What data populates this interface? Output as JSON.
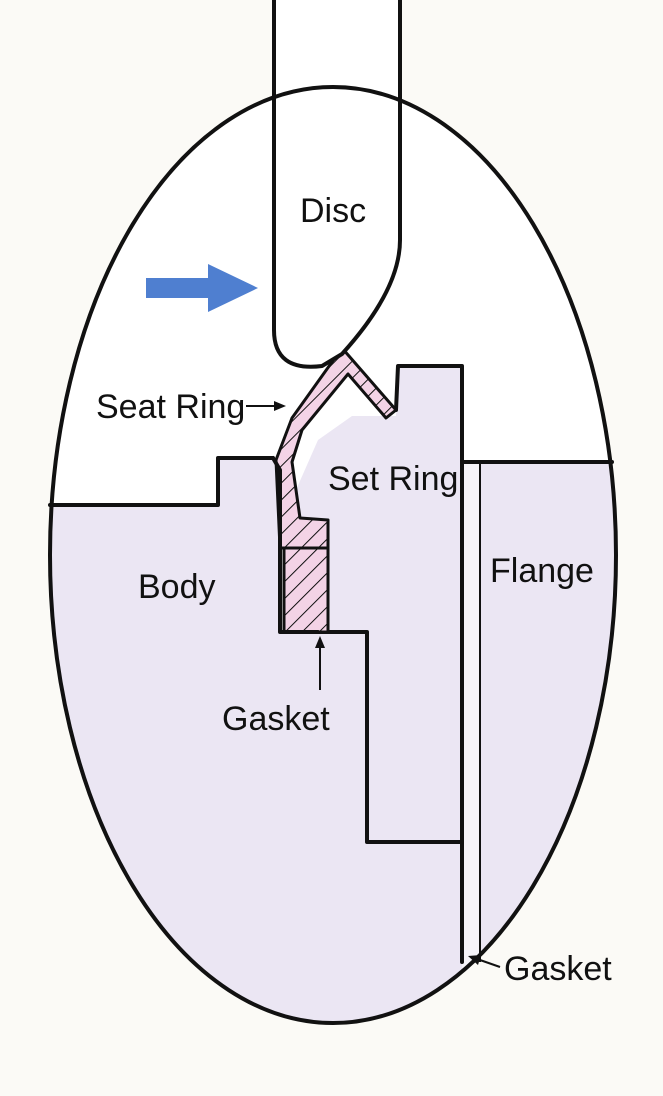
{
  "labels": {
    "disc": "Disc",
    "seat_ring": "Seat Ring",
    "set_ring": "Set Ring",
    "body": "Body",
    "flange": "Flange",
    "gasket_inner": "Gasket",
    "gasket_outer": "Gasket"
  },
  "colors": {
    "background": "#fbfaf6",
    "metal_fill": "#ebe6f3",
    "gasket_fill": "#f3d3e6",
    "flow_arrow": "#4f7fd0",
    "outline": "#111111"
  }
}
